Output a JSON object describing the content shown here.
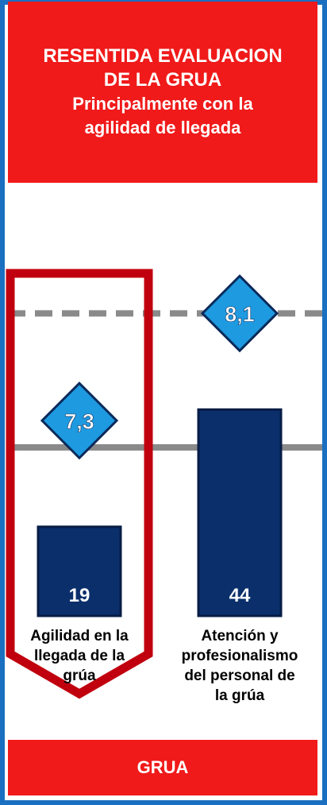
{
  "header": {
    "line1": "RESENTIDA EVALUACION",
    "line2": "DE LA GRUA",
    "line3": "Principalmente con la",
    "line4": "agilidad de llegada"
  },
  "footer": {
    "label": "GRUA"
  },
  "colors": {
    "frame": "#1a6fc0",
    "header_bg": "#f01a1a",
    "bar": "#0a2f6b",
    "highlight": "#c0000e",
    "diamond": "#1e9ae0",
    "dashed_line": "#8a8a8a",
    "solid_line": "#8a8a8a"
  },
  "chart_data": {
    "type": "bar",
    "categories": [
      "Agilidad en la llegada de la grúa",
      "Atención y profesionalismo del personal de la grúa"
    ],
    "category_lines": [
      [
        "Agilidad en la",
        "llegada de la",
        "grúa"
      ],
      [
        "Atención y",
        "profesionalismo",
        "del personal de",
        "la grúa"
      ]
    ],
    "values": [
      19,
      44
    ],
    "value_labels": [
      "19",
      "44"
    ],
    "scores": [
      7.3,
      8.1
    ],
    "score_labels": [
      "7,3",
      "8,1"
    ],
    "highlighted_category": 0,
    "bar_ylim": [
      0,
      48
    ],
    "score_ylim": [
      5.28,
      8.6
    ],
    "reference_lines": [
      {
        "style": "dashed",
        "score": 8.1
      },
      {
        "style": "solid",
        "score": 7.1
      }
    ]
  }
}
